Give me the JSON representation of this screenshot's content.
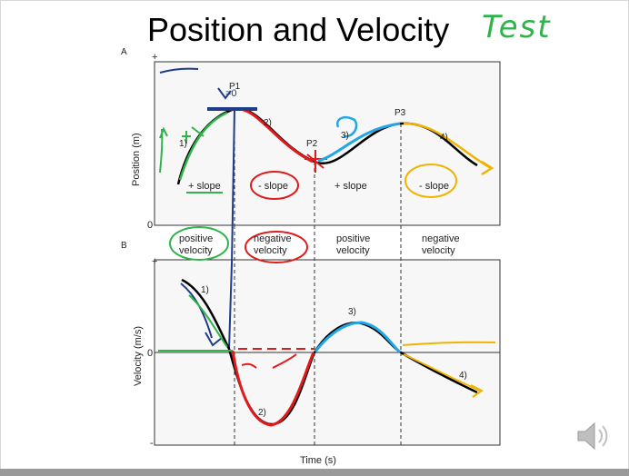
{
  "slide": {
    "title": "Position and Velocity",
    "handwritten_note": "Test"
  },
  "panel_a": {
    "letter": "A",
    "y_axis_label": "Position (m)",
    "y_axis_plus": "+",
    "y_axis_zero": "0",
    "points": {
      "p1": "P1",
      "p1_annotation": "=0",
      "p2": "P2",
      "p3": "P3"
    },
    "segments": [
      "1)",
      "2)",
      "3)",
      "4)"
    ],
    "slope_labels": [
      "+ slope",
      "- slope",
      "+ slope",
      "- slope"
    ]
  },
  "velocity_labels": [
    [
      "positive",
      "velocity"
    ],
    [
      "negative",
      "velocity"
    ],
    [
      "positive",
      "velocity"
    ],
    [
      "negative",
      "velocity"
    ]
  ],
  "panel_b": {
    "letter": "B",
    "y_axis_label": "Velocity (m/s)",
    "y_axis_plus": "+",
    "y_axis_zero": "0",
    "y_axis_minus": "-",
    "segments": [
      "1)",
      "2)",
      "3)",
      "4)"
    ],
    "x_axis_label": "Time (s)"
  },
  "colors": {
    "green": "#2fb34a",
    "red": "#e01b1b",
    "blue": "#1f3c88",
    "cyan": "#22a6e6",
    "yellow": "#f0b400",
    "curve": "#000000"
  },
  "icons": [
    "speaker-icon"
  ]
}
